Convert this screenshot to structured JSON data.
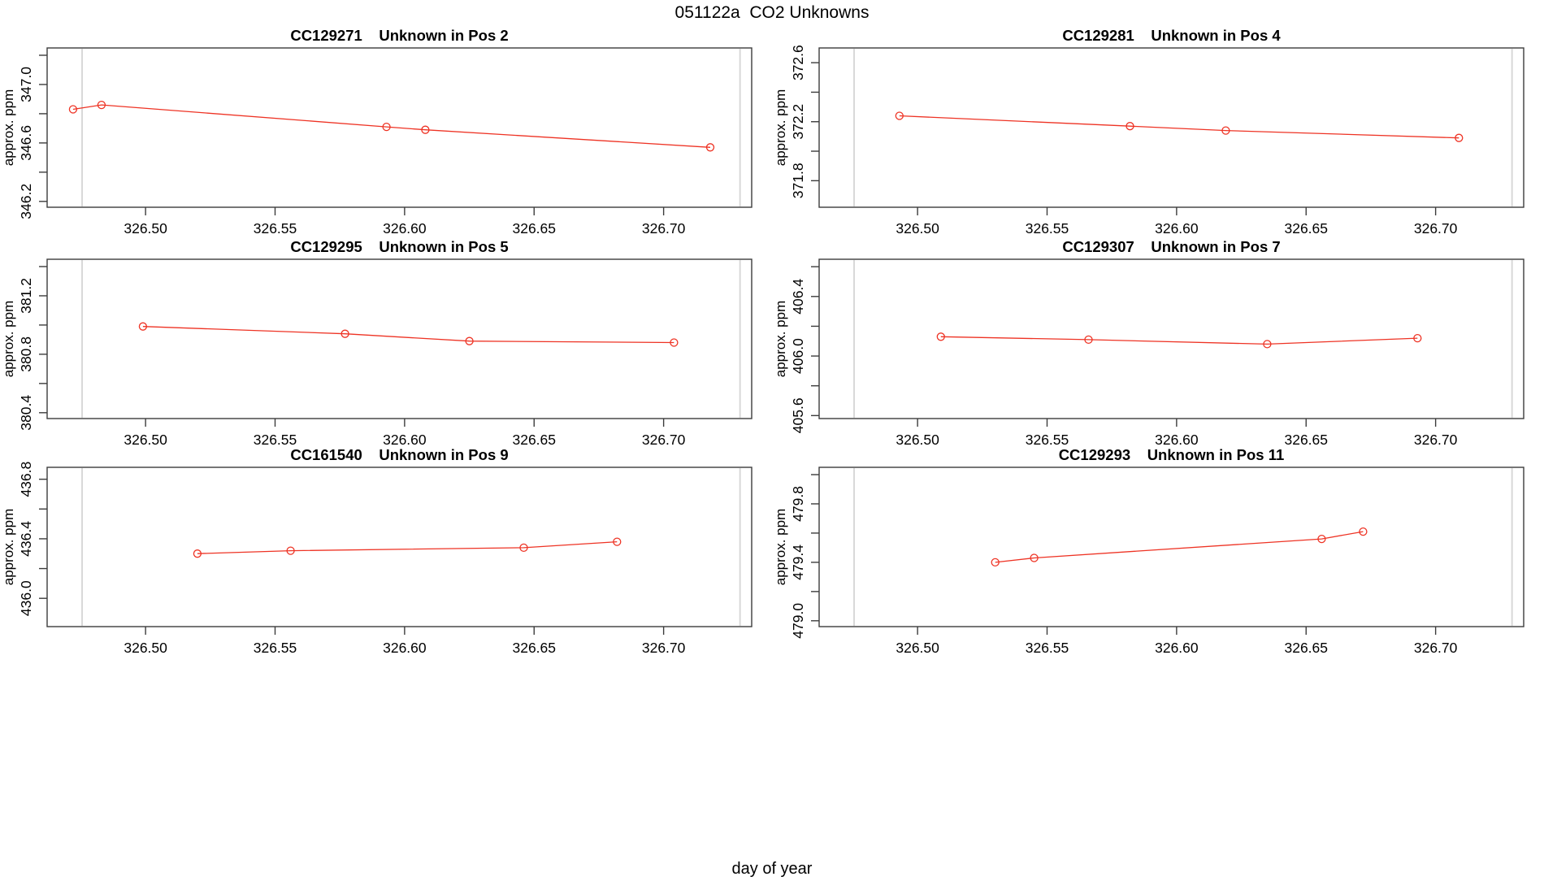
{
  "main_title": "051122a  CO2 Unknowns",
  "x_axis_label": "day of year",
  "y_axis_label": "approx. ppm",
  "colors": {
    "series": "#ee3324",
    "reference_line": "#d8d8d8",
    "axis": "#3c3c3c",
    "text": "#000000",
    "background": "#ffffff"
  },
  "chart_data": {
    "type": "line",
    "marker": "open-circle",
    "grid": "off",
    "xlabel": "day of year",
    "ylabel": "approx. ppm",
    "xlim": [
      326.462,
      326.734
    ],
    "x_ticks": [
      {
        "v": 326.5,
        "label": "326.50"
      },
      {
        "v": 326.55,
        "label": "326.55"
      },
      {
        "v": 326.6,
        "label": "326.60"
      },
      {
        "v": 326.65,
        "label": "326.65"
      },
      {
        "v": 326.7,
        "label": "326.70"
      }
    ],
    "reference_lines_x": [
      326.4755,
      326.7295
    ],
    "panels": [
      {
        "sample_id": "CC129271",
        "title": "Unknown in Pos 2",
        "ylim": [
          346.16,
          347.25
        ],
        "yticks": [
          {
            "v": 347.2,
            "label": ""
          },
          {
            "v": 347.0,
            "label": "347.0"
          },
          {
            "v": 346.8,
            "label": ""
          },
          {
            "v": 346.6,
            "label": "346.6"
          },
          {
            "v": 346.4,
            "label": ""
          },
          {
            "v": 346.2,
            "label": "346.2"
          }
        ],
        "points": [
          [
            326.472,
            346.83
          ],
          [
            326.483,
            346.86
          ],
          [
            326.593,
            346.71
          ],
          [
            326.608,
            346.69
          ],
          [
            326.718,
            346.57
          ]
        ]
      },
      {
        "sample_id": "CC129281",
        "title": "Unknown in Pos 4",
        "ylim": [
          371.62,
          372.7
        ],
        "yticks": [
          {
            "v": 372.6,
            "label": "372.6"
          },
          {
            "v": 372.4,
            "label": ""
          },
          {
            "v": 372.2,
            "label": "372.2"
          },
          {
            "v": 372.0,
            "label": ""
          },
          {
            "v": 371.8,
            "label": "371.8"
          }
        ],
        "points": [
          [
            326.493,
            372.24
          ],
          [
            326.582,
            372.17
          ],
          [
            326.619,
            372.14
          ],
          [
            326.709,
            372.09
          ]
        ]
      },
      {
        "sample_id": "CC129295",
        "title": "Unknown in Pos 5",
        "ylim": [
          380.36,
          381.45
        ],
        "yticks": [
          {
            "v": 381.4,
            "label": ""
          },
          {
            "v": 381.2,
            "label": "381.2"
          },
          {
            "v": 381.0,
            "label": ""
          },
          {
            "v": 380.8,
            "label": "380.8"
          },
          {
            "v": 380.6,
            "label": ""
          },
          {
            "v": 380.4,
            "label": "380.4"
          }
        ],
        "points": [
          [
            326.499,
            380.99
          ],
          [
            326.577,
            380.94
          ],
          [
            326.625,
            380.89
          ],
          [
            326.704,
            380.88
          ]
        ]
      },
      {
        "sample_id": "CC129307",
        "title": "Unknown in Pos 7",
        "ylim": [
          405.58,
          406.65
        ],
        "yticks": [
          {
            "v": 406.6,
            "label": ""
          },
          {
            "v": 406.4,
            "label": "406.4"
          },
          {
            "v": 406.2,
            "label": ""
          },
          {
            "v": 406.0,
            "label": "406.0"
          },
          {
            "v": 405.8,
            "label": ""
          },
          {
            "v": 405.6,
            "label": "405.6"
          }
        ],
        "points": [
          [
            326.509,
            406.13
          ],
          [
            326.566,
            406.11
          ],
          [
            326.635,
            406.08
          ],
          [
            326.693,
            406.12
          ]
        ]
      },
      {
        "sample_id": "CC161540",
        "title": "Unknown in Pos 9",
        "ylim": [
          435.81,
          436.88
        ],
        "yticks": [
          {
            "v": 436.8,
            "label": "436.8"
          },
          {
            "v": 436.6,
            "label": ""
          },
          {
            "v": 436.4,
            "label": "436.4"
          },
          {
            "v": 436.2,
            "label": ""
          },
          {
            "v": 436.0,
            "label": "436.0"
          }
        ],
        "points": [
          [
            326.52,
            436.3
          ],
          [
            326.556,
            436.32
          ],
          [
            326.646,
            436.34
          ],
          [
            326.682,
            436.38
          ]
        ]
      },
      {
        "sample_id": "CC129293",
        "title": "Unknown in Pos 11",
        "ylim": [
          478.96,
          480.05
        ],
        "yticks": [
          {
            "v": 480.0,
            "label": ""
          },
          {
            "v": 479.8,
            "label": "479.8"
          },
          {
            "v": 479.6,
            "label": ""
          },
          {
            "v": 479.4,
            "label": "479.4"
          },
          {
            "v": 479.2,
            "label": ""
          },
          {
            "v": 479.0,
            "label": "479.0"
          }
        ],
        "points": [
          [
            326.53,
            479.4
          ],
          [
            326.545,
            479.43
          ],
          [
            326.656,
            479.56
          ],
          [
            326.672,
            479.61
          ]
        ]
      }
    ]
  }
}
